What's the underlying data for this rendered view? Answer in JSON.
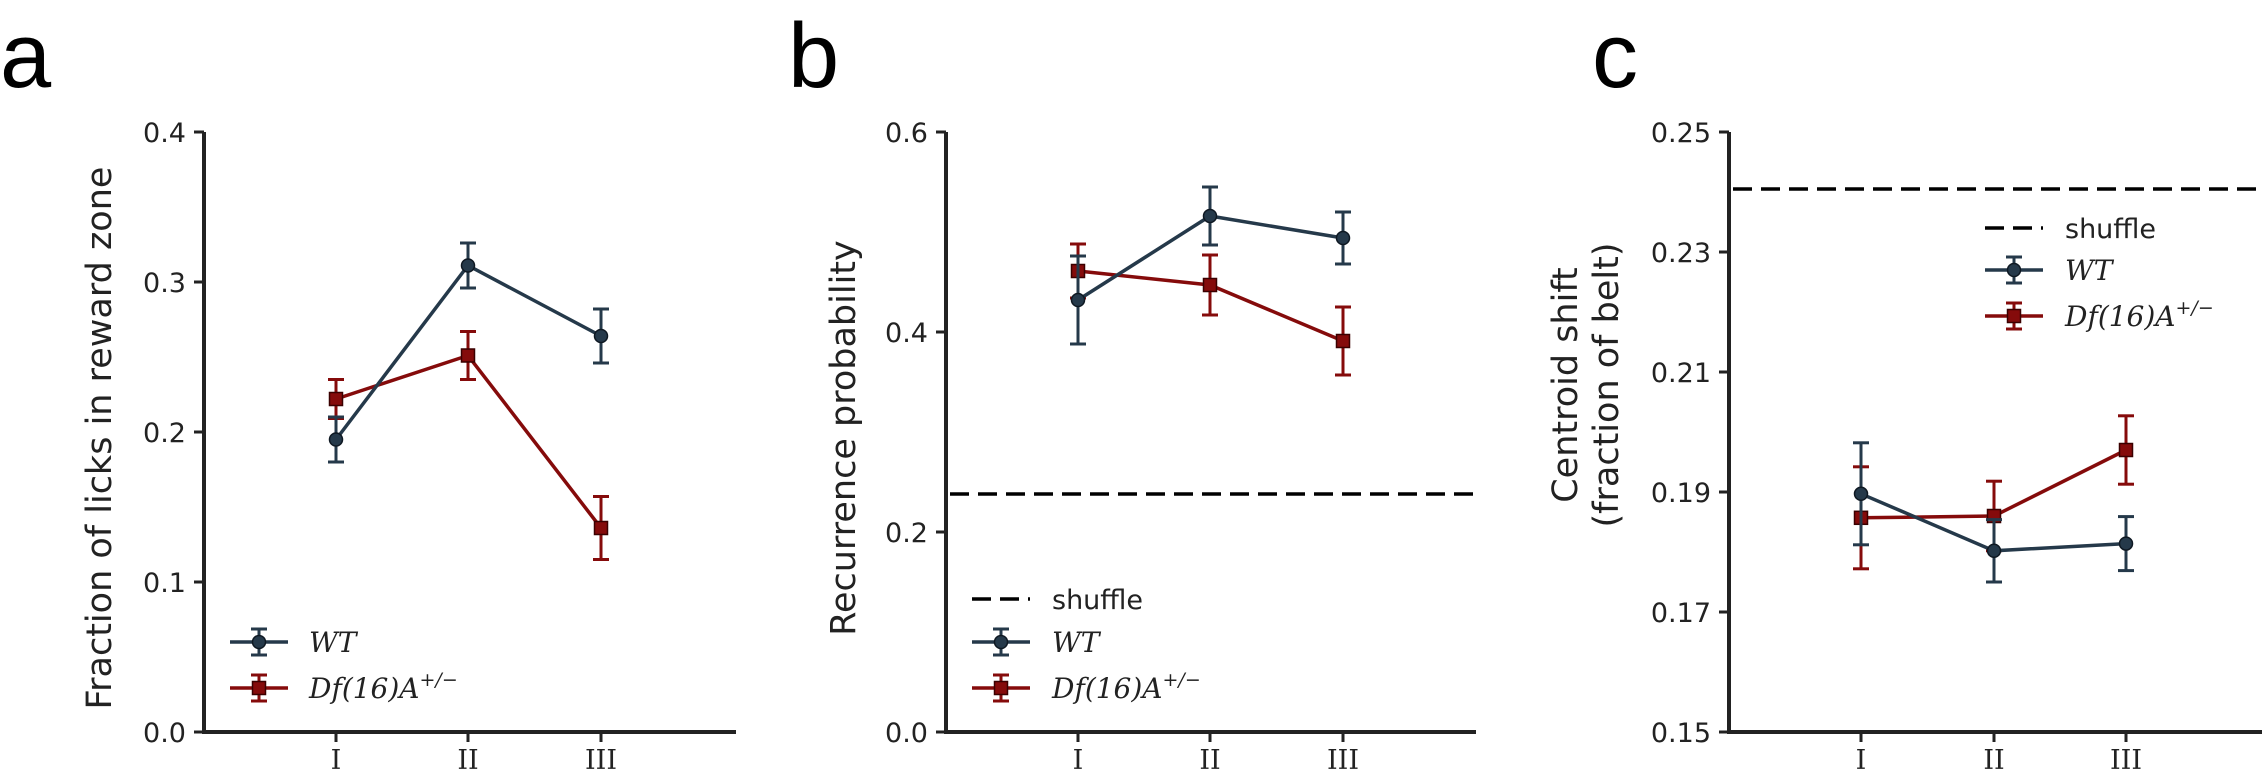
{
  "colors": {
    "wt": "#25394a",
    "df": "#850b0b",
    "axis": "#222222"
  },
  "chart_data": [
    {
      "panel": "a",
      "type": "line",
      "categories": [
        "I",
        "II",
        "III"
      ],
      "ylabel": "Fraction of licks in reward zone",
      "ylim": [
        0.0,
        0.4
      ],
      "yticks": [
        0.0,
        0.1,
        0.2,
        0.3,
        0.4
      ],
      "ytick_labels": [
        "0.0",
        "0.1",
        "0.2",
        "0.3",
        "0.4"
      ],
      "legend_position": "lower-left",
      "series": [
        {
          "name": "WT",
          "values": [
            0.195,
            0.311,
            0.264
          ],
          "err": [
            0.015,
            0.015,
            0.018
          ]
        },
        {
          "name": "Df(16)A",
          "name_sup": "+/−",
          "values": [
            0.222,
            0.251,
            0.136
          ],
          "err": [
            0.013,
            0.016,
            0.021
          ]
        }
      ]
    },
    {
      "panel": "b",
      "type": "line",
      "categories": [
        "I",
        "II",
        "III"
      ],
      "ylabel": "Recurrence probability",
      "ylim": [
        0.0,
        0.6
      ],
      "yticks": [
        0.0,
        0.2,
        0.4,
        0.6
      ],
      "ytick_labels": [
        "0.0",
        "0.2",
        "0.4",
        "0.6"
      ],
      "shuffle": 0.238,
      "shuffle_label": "shuffle",
      "legend_position": "lower-left",
      "series": [
        {
          "name": "WT",
          "values": [
            0.432,
            0.516,
            0.494
          ],
          "err": [
            0.044,
            0.029,
            0.026
          ]
        },
        {
          "name": "Df(16)A",
          "name_sup": "+/−",
          "values": [
            0.461,
            0.447,
            0.391
          ],
          "err": [
            0.027,
            0.03,
            0.034
          ]
        }
      ]
    },
    {
      "panel": "c",
      "type": "line",
      "categories": [
        "I",
        "II",
        "III"
      ],
      "ylabel": "Centroid shift",
      "ylabel2": "(fraction of belt)",
      "ylim": [
        0.15,
        0.25
      ],
      "yticks": [
        0.15,
        0.17,
        0.19,
        0.21,
        0.23,
        0.25
      ],
      "ytick_labels": [
        "0.15",
        "0.17",
        "0.19",
        "0.21",
        "0.23",
        "0.25"
      ],
      "shuffle": 0.2405,
      "shuffle_label": "shuffle",
      "legend_position": "upper-right",
      "series": [
        {
          "name": "WT",
          "values": [
            0.1897,
            0.1802,
            0.1814
          ],
          "err": [
            0.0085,
            0.0052,
            0.0045
          ]
        },
        {
          "name": "Df(16)A",
          "name_sup": "+/−",
          "values": [
            0.1857,
            0.186,
            0.197
          ],
          "err": [
            0.0085,
            0.0058,
            0.0057
          ]
        }
      ]
    }
  ]
}
